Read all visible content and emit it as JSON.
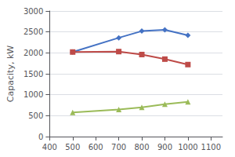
{
  "chart_data": {
    "type": "line",
    "x": [
      500,
      700,
      800,
      900,
      1000
    ],
    "series": [
      {
        "color": "#4472C4",
        "marker": "diamond",
        "values": [
          2020,
          2360,
          2520,
          2550,
          2420
        ]
      },
      {
        "color": "#BE4B48",
        "marker": "square",
        "values": [
          2020,
          2030,
          1960,
          1850,
          1720
        ]
      },
      {
        "color": "#9BBB59",
        "marker": "triangle",
        "values": [
          575,
          645,
          700,
          775,
          830
        ]
      }
    ],
    "ylabel": "Capacity, kW",
    "xlim": [
      400,
      1150
    ],
    "ylim": [
      0,
      3000
    ],
    "xticks": [
      400,
      500,
      600,
      700,
      800,
      900,
      1000,
      1100
    ],
    "yticks": [
      0,
      500,
      1000,
      1500,
      2000,
      2500,
      3000
    ],
    "grid": true
  }
}
